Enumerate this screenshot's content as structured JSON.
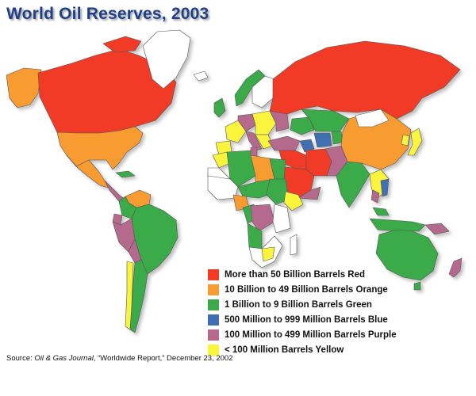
{
  "title": "World Oil Reserves, 2003",
  "legend": {
    "items": [
      {
        "label": "More than 50 Billion Barrels Red",
        "color": "#f23a25"
      },
      {
        "label": "10 Billion to 49 Billion Barrels Orange",
        "color": "#f89c33"
      },
      {
        "label": "1 Billion to 9 Billion Barrels Green",
        "color": "#3aaa4a"
      },
      {
        "label": "500 Million to 999 Million Barrels Blue",
        "color": "#3f6fb2"
      },
      {
        "label": "100 Million to 499 Million Barrels Purple",
        "color": "#b5698c"
      },
      {
        "label": "< 100 Million Barrels Yellow",
        "color": "#faf43c"
      }
    ]
  },
  "source": {
    "prefix": "Source: ",
    "publication": "Oil & Gas Journal",
    "suffix": ", “Worldwide Report,” December 23, 2002"
  },
  "colors": {
    "title": "#1f3f86",
    "no_data": "#ffffff",
    "border": "#555555",
    "shadow": "#d0d0d0"
  }
}
